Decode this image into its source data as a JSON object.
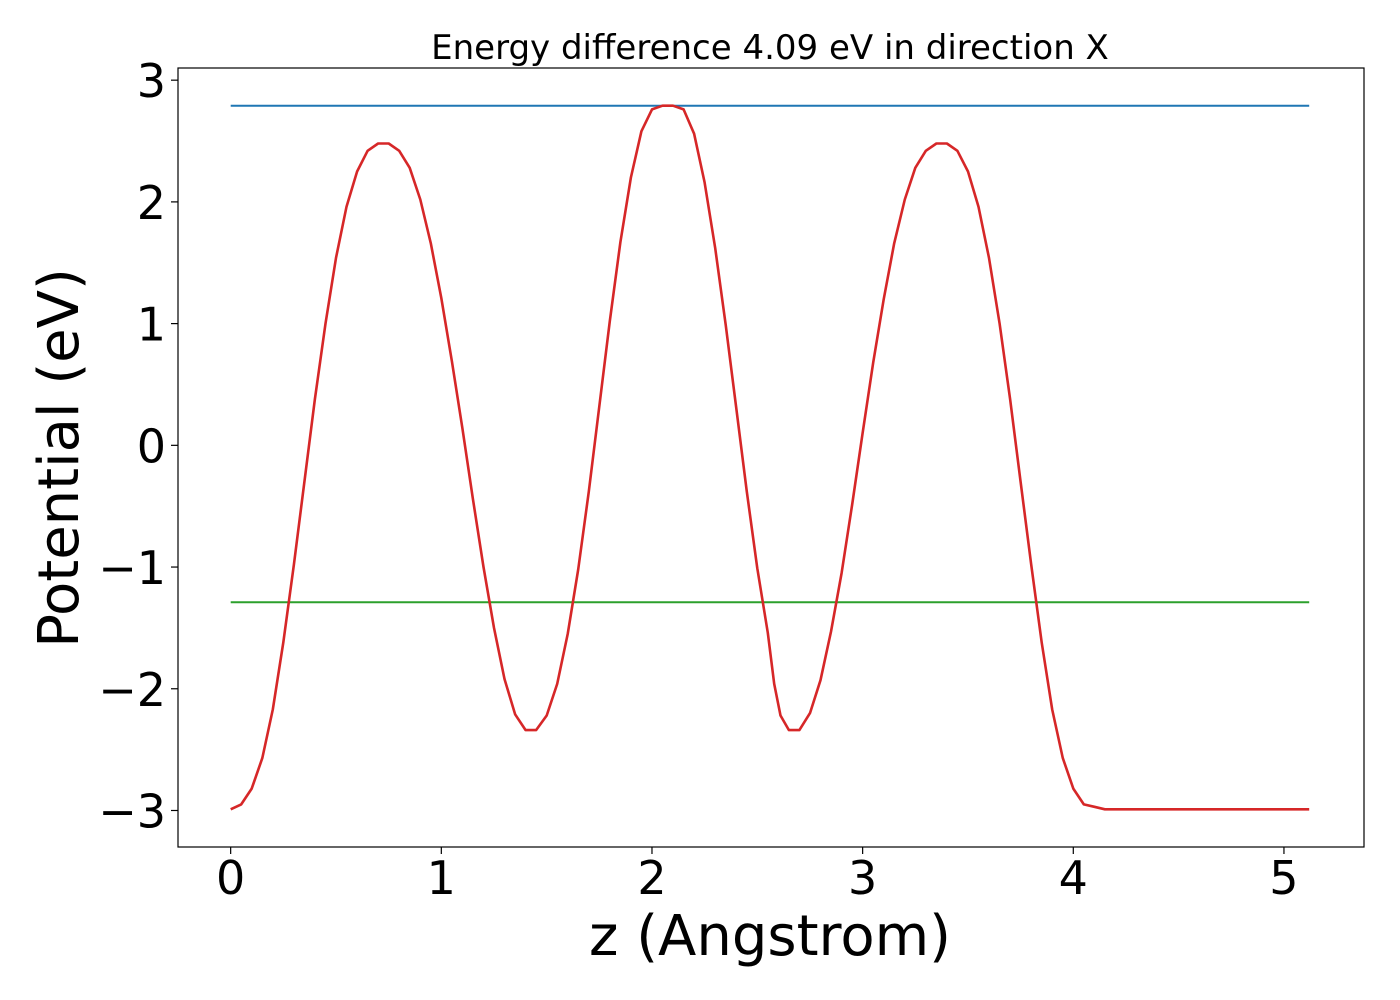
{
  "chart_data": {
    "type": "line",
    "title": "Energy difference 4.09 eV in direction X",
    "xlabel": "z (Angstrom)",
    "ylabel": "Potential (eV)",
    "xlim": [
      -0.25,
      5.38
    ],
    "ylim": [
      -3.3,
      3.1
    ],
    "x_ticks": [
      0,
      1,
      2,
      3,
      4,
      5
    ],
    "y_ticks": [
      -3,
      -2,
      -1,
      0,
      1,
      2,
      3
    ],
    "x_tick_labels": [
      "0",
      "1",
      "2",
      "3",
      "4",
      "5"
    ],
    "y_tick_labels": [
      "−3",
      "−2",
      "−1",
      "0",
      "1",
      "2",
      "3"
    ],
    "grid": false,
    "legend": "none",
    "series": [
      {
        "color": "#1f77b4",
        "x": [
          0,
          5.12
        ],
        "y": [
          2.79,
          2.79
        ]
      },
      {
        "color": "#2ca02c",
        "x": [
          0,
          5.12
        ],
        "y": [
          -1.29,
          -1.29
        ]
      },
      {
        "color": "#d62728",
        "x": [
          0,
          0.05,
          0.1,
          0.15,
          0.2,
          0.25,
          0.3,
          0.35,
          0.4,
          0.45,
          0.5,
          0.55,
          0.6,
          0.65,
          0.7,
          0.75,
          0.8,
          0.85,
          0.9,
          0.95,
          1.0,
          1.05,
          1.1,
          1.15,
          1.2,
          1.25,
          1.3,
          1.35,
          1.4,
          1.45,
          1.5,
          1.55,
          1.6,
          1.65,
          1.7,
          1.75,
          1.8,
          1.85,
          1.9,
          1.95,
          2.0,
          2.05,
          2.1,
          2.15,
          2.2,
          2.25,
          2.3,
          2.35,
          2.4,
          2.45,
          2.5,
          2.55,
          2.58,
          2.61,
          2.65,
          2.7,
          2.75,
          2.8,
          2.85,
          2.9,
          2.95,
          3.0,
          3.05,
          3.1,
          3.15,
          3.2,
          3.25,
          3.3,
          3.35,
          3.4,
          3.45,
          3.5,
          3.55,
          3.6,
          3.65,
          3.7,
          3.75,
          3.8,
          3.85,
          3.9,
          3.95,
          4.0,
          4.05,
          4.1,
          4.15,
          4.2,
          4.25,
          4.3,
          4.35,
          4.4,
          4.45,
          4.5,
          4.55,
          4.6,
          4.65,
          4.7,
          4.75,
          4.8,
          4.85,
          4.9,
          4.95,
          5.0,
          5.05,
          5.12
        ],
        "y": [
          -2.99,
          -2.95,
          -2.82,
          -2.57,
          -2.17,
          -1.62,
          -0.98,
          -0.3,
          0.38,
          1.0,
          1.54,
          1.96,
          2.25,
          2.42,
          2.48,
          2.48,
          2.42,
          2.28,
          2.02,
          1.66,
          1.21,
          0.69,
          0.14,
          -0.44,
          -1.0,
          -1.5,
          -1.92,
          -2.21,
          -2.34,
          -2.34,
          -2.22,
          -1.96,
          -1.55,
          -1.02,
          -0.38,
          0.32,
          1.02,
          1.67,
          2.2,
          2.58,
          2.76,
          2.79,
          2.79,
          2.76,
          2.56,
          2.16,
          1.62,
          0.99,
          0.31,
          -0.38,
          -1.01,
          -1.54,
          -1.96,
          -2.22,
          -2.34,
          -2.34,
          -2.2,
          -1.93,
          -1.53,
          -1.05,
          -0.49,
          0.1,
          0.68,
          1.2,
          1.66,
          2.02,
          2.28,
          2.42,
          2.48,
          2.48,
          2.42,
          2.25,
          1.96,
          1.54,
          1.0,
          0.38,
          -0.3,
          -0.98,
          -1.62,
          -2.17,
          -2.57,
          -2.82,
          -2.95,
          -2.97,
          -2.99,
          -2.99,
          -2.99,
          -2.99,
          -2.99,
          -2.99,
          -2.99,
          -2.99,
          -2.99,
          -2.99,
          -2.99,
          -2.99,
          -2.99,
          -2.99,
          -2.99,
          -2.99,
          -2.99,
          -2.99,
          -2.99,
          -2.99
        ]
      }
    ]
  }
}
